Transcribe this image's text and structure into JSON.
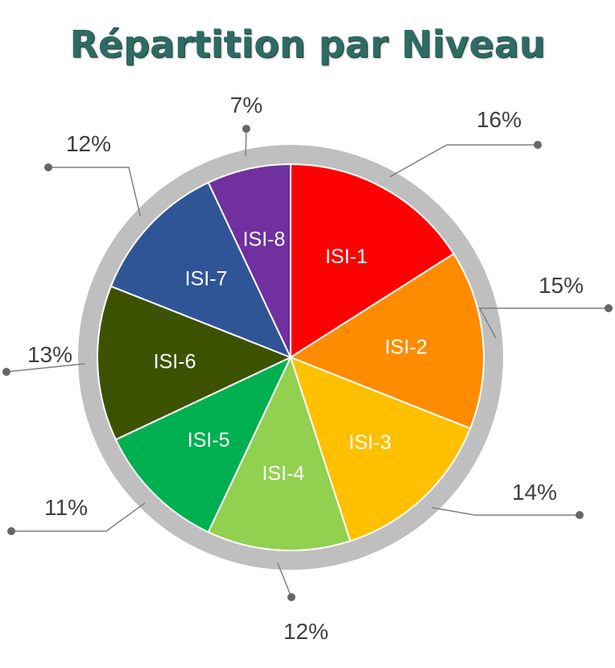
{
  "chart_data": {
    "type": "pie",
    "title": "Répartition par Niveau",
    "categories": [
      "ISI-1",
      "ISI-2",
      "ISI-3",
      "ISI-4",
      "ISI-5",
      "ISI-6",
      "ISI-7",
      "ISI-8"
    ],
    "values": [
      16,
      15,
      14,
      12,
      11,
      13,
      12,
      7
    ],
    "percent_labels": [
      "16%",
      "15%",
      "14%",
      "12%",
      "11%",
      "13%",
      "12%",
      "7%"
    ],
    "colors": [
      "#ff0000",
      "#ff8c00",
      "#ffc000",
      "#92d050",
      "#00b050",
      "#3d5200",
      "#2f5597",
      "#7030a0"
    ],
    "ring_color": "#bfbfbf",
    "leader_color": "#808080",
    "legend": "none"
  }
}
